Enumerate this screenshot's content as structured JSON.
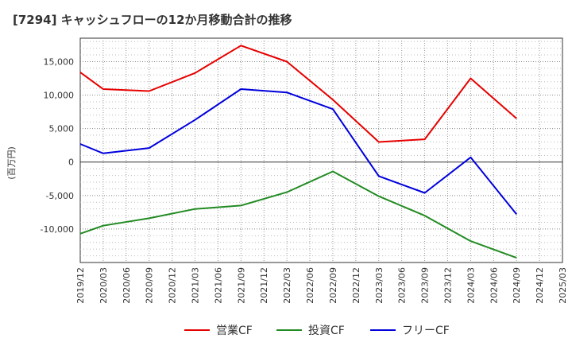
{
  "chart_data": {
    "type": "line",
    "title": "[7294]  キャッシュフローの12か月移動合計の推移",
    "ylabel": "(百万円)",
    "xlabel": "",
    "ylim": [
      -15000,
      18500
    ],
    "yticks": [
      15000,
      10000,
      5000,
      0,
      -5000,
      -10000
    ],
    "ytick_labels": [
      "15,000",
      "10,000",
      "5,000",
      "0",
      "-5,000",
      "-10,000"
    ],
    "categories": [
      "2019/12",
      "2020/03",
      "2020/06",
      "2020/09",
      "2020/12",
      "2021/03",
      "2021/06",
      "2021/09",
      "2021/12",
      "2022/03",
      "2022/06",
      "2022/09",
      "2022/12",
      "2023/03",
      "2023/06",
      "2023/09",
      "2023/12",
      "2024/03",
      "2024/06",
      "2024/09",
      "2024/12",
      "2025/03"
    ],
    "grid": true,
    "legend_position": "bottom",
    "series": [
      {
        "name": "営業CF",
        "color": "#e60000",
        "values": [
          13400,
          10900,
          null,
          10600,
          null,
          13300,
          null,
          17400,
          null,
          15000,
          null,
          9300,
          null,
          3000,
          null,
          3400,
          null,
          12500,
          null,
          6500,
          null,
          null
        ]
      },
      {
        "name": "投資CF",
        "color": "#228b22",
        "values": [
          -10700,
          -9500,
          null,
          -8400,
          null,
          -7000,
          null,
          -6500,
          null,
          -4500,
          null,
          -1400,
          null,
          -5100,
          null,
          -8000,
          null,
          -11800,
          null,
          -14300,
          null,
          null
        ]
      },
      {
        "name": "フリーCF",
        "color": "#0000dd",
        "values": [
          2700,
          1300,
          null,
          2100,
          null,
          6300,
          null,
          10900,
          null,
          10400,
          null,
          7900,
          null,
          -2100,
          null,
          -4600,
          null,
          700,
          null,
          -7800,
          null,
          null
        ]
      }
    ]
  }
}
